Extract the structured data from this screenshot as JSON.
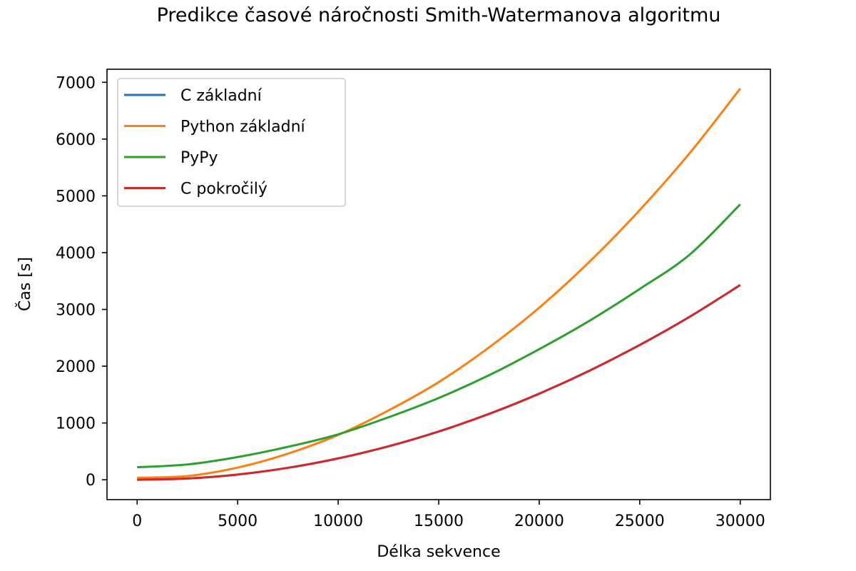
{
  "chart_data": {
    "type": "line",
    "title": "Predikce časové náročnosti Smith-Watermanova algoritmu",
    "xlabel": "Délka sekvence",
    "ylabel": "Čas [s]",
    "xlim": [
      -1500,
      31500
    ],
    "ylim": [
      -350,
      7230
    ],
    "xticks": [
      0,
      5000,
      10000,
      15000,
      20000,
      25000,
      30000
    ],
    "xtick_labels": [
      "0",
      "5000",
      "10000",
      "15000",
      "20000",
      "25000",
      "30000"
    ],
    "yticks": [
      0,
      1000,
      2000,
      3000,
      4000,
      5000,
      6000,
      7000
    ],
    "ytick_labels": [
      "0",
      "1000",
      "2000",
      "3000",
      "4000",
      "5000",
      "6000",
      "7000"
    ],
    "grid": false,
    "legend_position": "upper left",
    "x": [
      0,
      2500,
      5000,
      7500,
      10000,
      12500,
      15000,
      17500,
      20000,
      22500,
      25000,
      27500,
      30000
    ],
    "series": [
      {
        "name": "C základní",
        "color": "#1f77b4",
        "values": [
          0,
          22,
          92,
          210,
          376,
          589,
          850,
          1159,
          1516,
          1921,
          2374,
          2874,
          3430
        ]
      },
      {
        "name": "Python základní",
        "color": "#ff7f0e",
        "values": [
          35,
          65,
          215,
          460,
          790,
          1220,
          1720,
          2330,
          3030,
          3840,
          4750,
          5760,
          6890
        ]
      },
      {
        "name": "PyPy",
        "color": "#2ca02c",
        "values": [
          220,
          270,
          400,
          580,
          800,
          1100,
          1440,
          1840,
          2300,
          2800,
          3360,
          3970,
          4850
        ]
      },
      {
        "name": "C pokročilý",
        "color": "#d62728",
        "values": [
          0,
          22,
          92,
          210,
          376,
          589,
          850,
          1159,
          1516,
          1921,
          2374,
          2874,
          3430
        ]
      }
    ]
  }
}
